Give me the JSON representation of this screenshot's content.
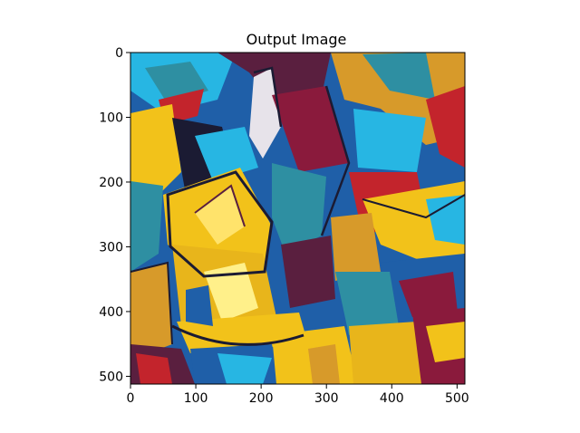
{
  "chart_data": {
    "type": "image",
    "title": "Output Image",
    "xlabel": "",
    "ylabel": "",
    "xlim": [
      0,
      512
    ],
    "ylim": [
      512,
      0
    ],
    "x_ticks": [
      0,
      100,
      200,
      300,
      400,
      500
    ],
    "y_ticks": [
      0,
      100,
      200,
      300,
      400,
      500
    ],
    "grid": false,
    "legend": "none",
    "image_description": "cubist style-transferred painting with yellow, blue, cyan, red and dark purple angular shapes",
    "colors": {
      "yellow": "#f2c21a",
      "gold": "#d79a2a",
      "blue": "#1f5fa8",
      "cyan": "#27b6e3",
      "red": "#c3242c",
      "purple": "#5a1f3f",
      "dark": "#1b1b33",
      "teal": "#2e8fa2"
    }
  }
}
